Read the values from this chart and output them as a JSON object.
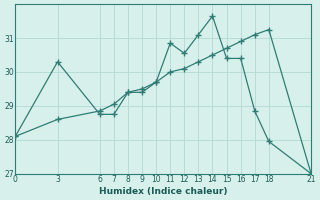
{
  "xlabel": "Humidex (Indice chaleur)",
  "background_color": "#d8f0ec",
  "grid_color": "#b8ddd8",
  "line_color": "#2e7d74",
  "xlim": [
    0,
    21
  ],
  "ylim": [
    27,
    32
  ],
  "xticks": [
    0,
    3,
    6,
    7,
    8,
    9,
    10,
    11,
    12,
    13,
    14,
    15,
    16,
    17,
    18,
    21
  ],
  "yticks": [
    27,
    28,
    29,
    30,
    31
  ],
  "series1_x": [
    0,
    3,
    6,
    7,
    8,
    9,
    10,
    11,
    12,
    13,
    14,
    15,
    16,
    17,
    18,
    21
  ],
  "series1_y": [
    28.1,
    30.3,
    28.75,
    28.75,
    29.4,
    29.4,
    29.7,
    30.85,
    30.55,
    31.1,
    31.65,
    30.4,
    30.4,
    28.85,
    27.95,
    27.0
  ],
  "series2_x": [
    0,
    3,
    6,
    7,
    8,
    9,
    10,
    11,
    12,
    13,
    14,
    15,
    16,
    17,
    18,
    21
  ],
  "series2_y": [
    28.1,
    28.6,
    28.85,
    29.05,
    29.4,
    29.5,
    29.7,
    30.0,
    30.1,
    30.3,
    30.5,
    30.7,
    30.9,
    31.1,
    31.25,
    27.0
  ]
}
